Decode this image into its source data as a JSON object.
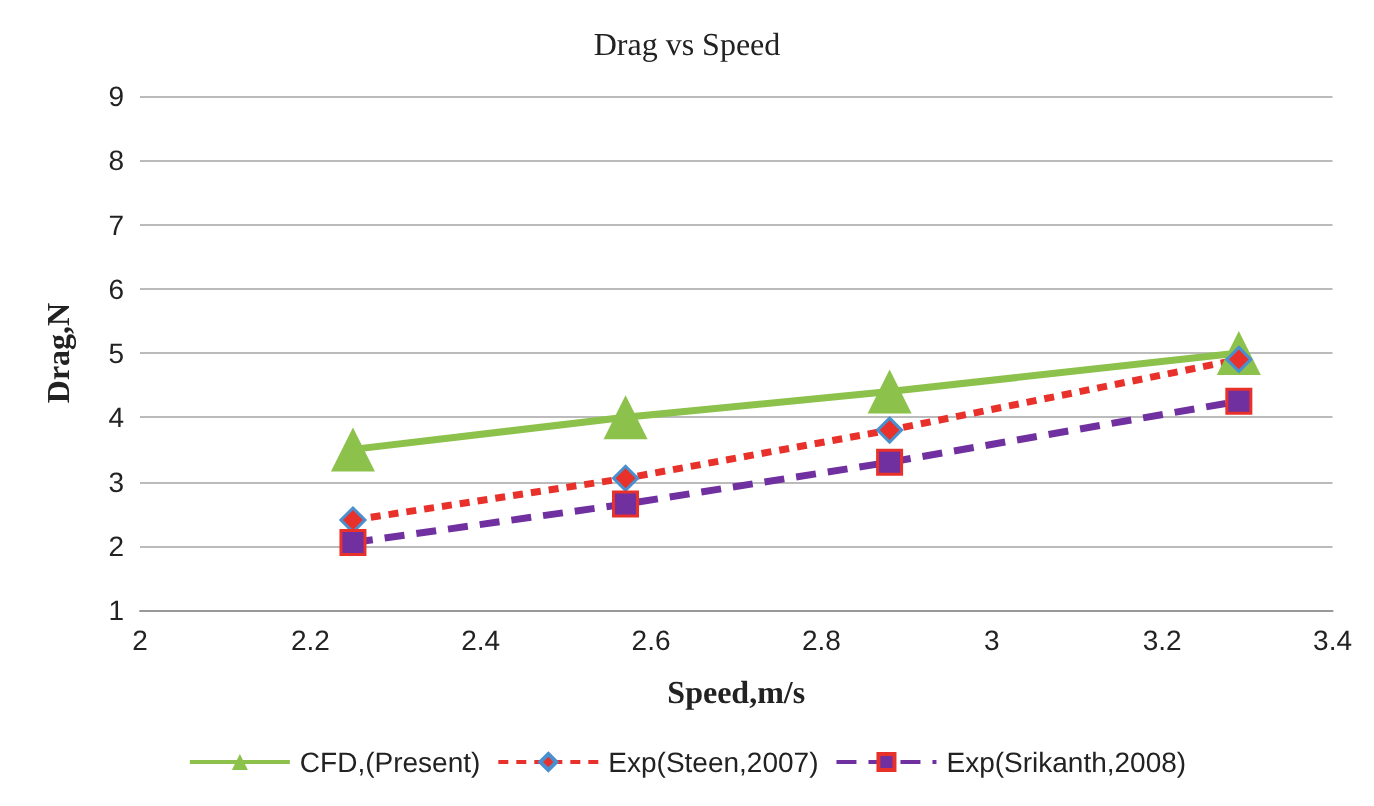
{
  "chart_data": {
    "type": "line",
    "title": "Drag vs Speed",
    "xlabel": "Speed,m/s",
    "ylabel": "Drag,N",
    "x": [
      2.25,
      2.57,
      2.88,
      3.29
    ],
    "series": [
      {
        "name": "CFD,(Present)",
        "color": "#8cc14b",
        "values": [
          3.5,
          4.0,
          4.4,
          5.0
        ],
        "marker": "triangle",
        "line_style": "solid"
      },
      {
        "name": "Exp(Steen,2007)",
        "color": "#e8312a",
        "values": [
          2.4,
          3.05,
          3.8,
          4.9
        ],
        "marker": "diamond",
        "line_style": "dotted"
      },
      {
        "name": "Exp(Srikanth,2008)",
        "color": "#7030a0",
        "values": [
          2.05,
          2.65,
          3.3,
          4.25
        ],
        "marker": "square",
        "line_style": "dashed"
      }
    ],
    "xlim": [
      2,
      3.4
    ],
    "xticks": [
      2,
      2.2,
      2.4,
      2.6,
      2.8,
      3,
      3.2,
      3.4
    ],
    "ylim": [
      1,
      9
    ],
    "yticks": [
      1,
      2,
      3,
      4,
      5,
      6,
      7,
      8,
      9
    ],
    "grid": "y",
    "legend": "bottom"
  }
}
